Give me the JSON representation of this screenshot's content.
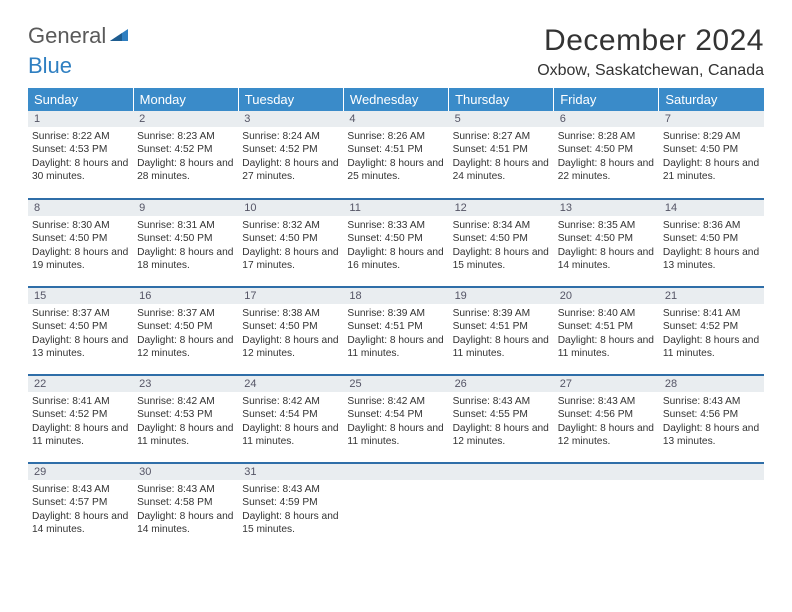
{
  "logo": {
    "general": "General",
    "blue": "Blue"
  },
  "title": "December 2024",
  "location": "Oxbow, Saskatchewan, Canada",
  "colors": {
    "header_bg": "#3a8bc9",
    "header_text": "#ffffff",
    "daynum_bg": "#e9edf0",
    "row_border": "#2f6ea8",
    "logo_blue": "#2f7fc1",
    "logo_gray": "#5a5a5a"
  },
  "weekdays": [
    "Sunday",
    "Monday",
    "Tuesday",
    "Wednesday",
    "Thursday",
    "Friday",
    "Saturday"
  ],
  "weeks": [
    [
      {
        "n": "1",
        "sr": "8:22 AM",
        "ss": "4:53 PM",
        "dl": "8 hours and 30 minutes."
      },
      {
        "n": "2",
        "sr": "8:23 AM",
        "ss": "4:52 PM",
        "dl": "8 hours and 28 minutes."
      },
      {
        "n": "3",
        "sr": "8:24 AM",
        "ss": "4:52 PM",
        "dl": "8 hours and 27 minutes."
      },
      {
        "n": "4",
        "sr": "8:26 AM",
        "ss": "4:51 PM",
        "dl": "8 hours and 25 minutes."
      },
      {
        "n": "5",
        "sr": "8:27 AM",
        "ss": "4:51 PM",
        "dl": "8 hours and 24 minutes."
      },
      {
        "n": "6",
        "sr": "8:28 AM",
        "ss": "4:50 PM",
        "dl": "8 hours and 22 minutes."
      },
      {
        "n": "7",
        "sr": "8:29 AM",
        "ss": "4:50 PM",
        "dl": "8 hours and 21 minutes."
      }
    ],
    [
      {
        "n": "8",
        "sr": "8:30 AM",
        "ss": "4:50 PM",
        "dl": "8 hours and 19 minutes."
      },
      {
        "n": "9",
        "sr": "8:31 AM",
        "ss": "4:50 PM",
        "dl": "8 hours and 18 minutes."
      },
      {
        "n": "10",
        "sr": "8:32 AM",
        "ss": "4:50 PM",
        "dl": "8 hours and 17 minutes."
      },
      {
        "n": "11",
        "sr": "8:33 AM",
        "ss": "4:50 PM",
        "dl": "8 hours and 16 minutes."
      },
      {
        "n": "12",
        "sr": "8:34 AM",
        "ss": "4:50 PM",
        "dl": "8 hours and 15 minutes."
      },
      {
        "n": "13",
        "sr": "8:35 AM",
        "ss": "4:50 PM",
        "dl": "8 hours and 14 minutes."
      },
      {
        "n": "14",
        "sr": "8:36 AM",
        "ss": "4:50 PM",
        "dl": "8 hours and 13 minutes."
      }
    ],
    [
      {
        "n": "15",
        "sr": "8:37 AM",
        "ss": "4:50 PM",
        "dl": "8 hours and 13 minutes."
      },
      {
        "n": "16",
        "sr": "8:37 AM",
        "ss": "4:50 PM",
        "dl": "8 hours and 12 minutes."
      },
      {
        "n": "17",
        "sr": "8:38 AM",
        "ss": "4:50 PM",
        "dl": "8 hours and 12 minutes."
      },
      {
        "n": "18",
        "sr": "8:39 AM",
        "ss": "4:51 PM",
        "dl": "8 hours and 11 minutes."
      },
      {
        "n": "19",
        "sr": "8:39 AM",
        "ss": "4:51 PM",
        "dl": "8 hours and 11 minutes."
      },
      {
        "n": "20",
        "sr": "8:40 AM",
        "ss": "4:51 PM",
        "dl": "8 hours and 11 minutes."
      },
      {
        "n": "21",
        "sr": "8:41 AM",
        "ss": "4:52 PM",
        "dl": "8 hours and 11 minutes."
      }
    ],
    [
      {
        "n": "22",
        "sr": "8:41 AM",
        "ss": "4:52 PM",
        "dl": "8 hours and 11 minutes."
      },
      {
        "n": "23",
        "sr": "8:42 AM",
        "ss": "4:53 PM",
        "dl": "8 hours and 11 minutes."
      },
      {
        "n": "24",
        "sr": "8:42 AM",
        "ss": "4:54 PM",
        "dl": "8 hours and 11 minutes."
      },
      {
        "n": "25",
        "sr": "8:42 AM",
        "ss": "4:54 PM",
        "dl": "8 hours and 11 minutes."
      },
      {
        "n": "26",
        "sr": "8:43 AM",
        "ss": "4:55 PM",
        "dl": "8 hours and 12 minutes."
      },
      {
        "n": "27",
        "sr": "8:43 AM",
        "ss": "4:56 PM",
        "dl": "8 hours and 12 minutes."
      },
      {
        "n": "28",
        "sr": "8:43 AM",
        "ss": "4:56 PM",
        "dl": "8 hours and 13 minutes."
      }
    ],
    [
      {
        "n": "29",
        "sr": "8:43 AM",
        "ss": "4:57 PM",
        "dl": "8 hours and 14 minutes."
      },
      {
        "n": "30",
        "sr": "8:43 AM",
        "ss": "4:58 PM",
        "dl": "8 hours and 14 minutes."
      },
      {
        "n": "31",
        "sr": "8:43 AM",
        "ss": "4:59 PM",
        "dl": "8 hours and 15 minutes."
      },
      null,
      null,
      null,
      null
    ]
  ],
  "labels": {
    "sunrise": "Sunrise:",
    "sunset": "Sunset:",
    "daylight": "Daylight:"
  }
}
